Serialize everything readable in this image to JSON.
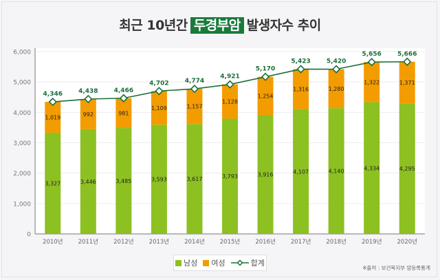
{
  "title": {
    "prefix": "최근 10년간",
    "highlight": "두경부암",
    "suffix": "발생자수 추이"
  },
  "colors": {
    "male": "#8dc021",
    "female": "#f39c00",
    "total": "#1a6e3a",
    "title_highlight": "#1a7a3c"
  },
  "legend": {
    "male": "남성",
    "female": "여성",
    "total": "합계"
  },
  "source": "※출처 : 보건복지부 암등록통계",
  "chart_data": {
    "type": "bar",
    "stacked": true,
    "title": "최근 10년간 두경부암 발생자수 추이",
    "xlabel": "",
    "ylabel": "",
    "ylim": [
      0,
      6000
    ],
    "yticks": [
      0,
      1000,
      2000,
      3000,
      4000,
      5000,
      6000
    ],
    "ytick_labels": [
      "0",
      "1,000",
      "2,000",
      "3,000",
      "4,000",
      "5,000",
      "6,000"
    ],
    "grid": true,
    "legend_position": "bottom",
    "categories": [
      "2010년",
      "2011년",
      "2012년",
      "2013년",
      "2014년",
      "2015년",
      "2016년",
      "2017년",
      "2018년",
      "2019년",
      "2020년"
    ],
    "series": [
      {
        "name": "남성",
        "type": "bar",
        "values": [
          3327,
          3446,
          3485,
          3593,
          3617,
          3793,
          3916,
          4107,
          4140,
          4334,
          4295
        ],
        "labels": [
          "3,327",
          "3,446",
          "3,485",
          "3,593",
          "3,617",
          "3,793",
          "3,916",
          "4,107",
          "4,140",
          "4,334",
          "4,295"
        ]
      },
      {
        "name": "여성",
        "type": "bar",
        "values": [
          1019,
          992,
          981,
          1109,
          1157,
          1128,
          1254,
          1316,
          1280,
          1322,
          1371
        ],
        "labels": [
          "1,019",
          "992",
          "981",
          "1,109",
          "1,157",
          "1,128",
          "1,254",
          "1,316",
          "1,280",
          "1,322",
          "1,371"
        ]
      },
      {
        "name": "합계",
        "type": "line",
        "values": [
          4346,
          4438,
          4466,
          4702,
          4774,
          4921,
          5170,
          5423,
          5420,
          5656,
          5666
        ],
        "labels": [
          "4,346",
          "4,438",
          "4,466",
          "4,702",
          "4,774",
          "4,921",
          "5,170",
          "5,423",
          "5,420",
          "5,656",
          "5,666"
        ]
      }
    ]
  }
}
